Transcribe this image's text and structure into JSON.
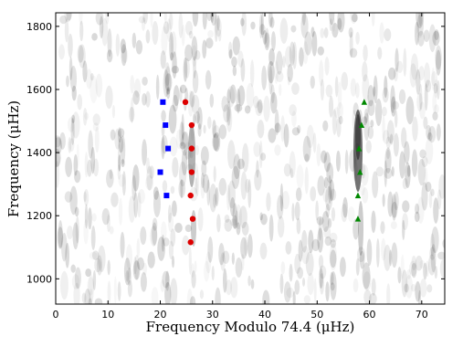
{
  "chart_data": {
    "type": "scatter",
    "xlabel": "Frequency Modulo 74.4 (μHz)",
    "ylabel": "Frequency (μHz)",
    "xlim": [
      0,
      74.4
    ],
    "ylim": [
      920,
      1843
    ],
    "xticks": [
      0,
      10,
      20,
      30,
      40,
      50,
      60,
      70
    ],
    "yticks": [
      1000,
      1200,
      1400,
      1600,
      1800
    ],
    "series": [
      {
        "color": "#0000ff",
        "marker": "square",
        "x": [
          20.5,
          21,
          21.5,
          20,
          21.2
        ],
        "values": [
          1560,
          1487,
          1413,
          1338,
          1264
        ]
      },
      {
        "color": "#dd0000",
        "marker": "circle",
        "x": [
          24.8,
          26,
          26,
          26,
          25.8,
          26.2,
          25.8
        ],
        "values": [
          1560,
          1487,
          1413,
          1338,
          1264,
          1190,
          1116
        ]
      },
      {
        "color": "#008800",
        "marker": "triangle",
        "x": [
          59,
          58.5,
          58,
          58.2,
          57.8,
          57.8
        ],
        "values": [
          1560,
          1487,
          1413,
          1338,
          1264,
          1190
        ]
      }
    ]
  }
}
